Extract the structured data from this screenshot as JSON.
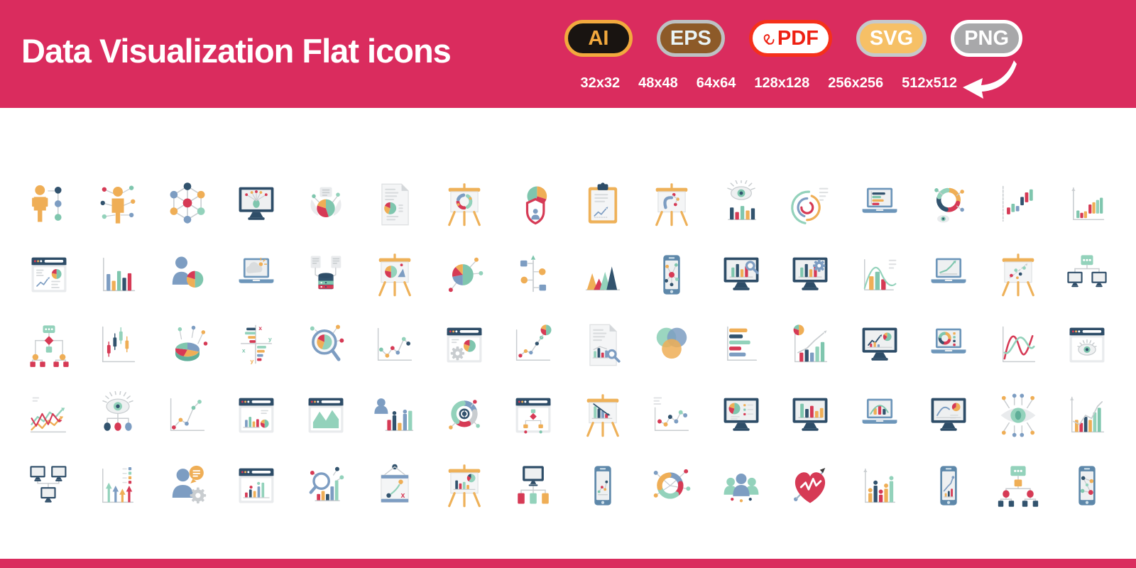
{
  "header": {
    "title": "Data Visualization Flat icons",
    "background_color": "#da2c5e",
    "badges": [
      {
        "label": "AI",
        "fill": "#191411",
        "border": "#f2a93e",
        "text_color": "#f2a93e"
      },
      {
        "label": "EPS",
        "fill": "#8d5a28",
        "border": "#bdc1c3",
        "text_color": "#e9f4f6"
      },
      {
        "label": "PDF",
        "fill": "#ffffff",
        "border": "#f5301b",
        "text_color": "#ee2012",
        "icon": "acrobat-icon"
      },
      {
        "label": "SVG",
        "fill": "#f6c066",
        "border": "#c6c9cb",
        "text_color": "#ffffff"
      },
      {
        "label": "PNG",
        "fill": "#a8a8aa",
        "border": "#ffffff",
        "text_color": "#ffffff"
      }
    ],
    "sizes": [
      "32x32",
      "48x48",
      "64x64",
      "128x128",
      "256x256",
      "512x512"
    ],
    "arrow_icon": "curved-arrow-left"
  },
  "palette": {
    "t": "#7fc6ae",
    "g": "#93d2bb",
    "r": "#d63a55",
    "o": "#efae56",
    "y": "#f3c571",
    "n": "#32536e",
    "b": "#7d9dc2",
    "s": "#688fb4",
    "lg": "#e9ebed",
    "mg": "#c9cdd0",
    "frame": "#2e4d68",
    "lap": "#6d96ba",
    "ph": "#5e88aa",
    "wood": "#eeb159",
    "scr": "#eef0f1",
    "doc": "#f4f5f6",
    "dl": "#d9dcde",
    "w": "#ffffff"
  },
  "icon_grid": {
    "columns": 16,
    "rows": 5,
    "icons": [
      {
        "n": "user-profile-data",
        "k": "person-dots"
      },
      {
        "n": "user-network",
        "k": "person-net"
      },
      {
        "n": "network-nodes",
        "k": "molecule"
      },
      {
        "n": "monitor-data-spread",
        "k": "device",
        "d": "monitor",
        "inner": "radiate"
      },
      {
        "n": "pie-connections",
        "k": "winged-pie"
      },
      {
        "n": "report-document",
        "k": "device",
        "d": "doc",
        "inner": "piedoc"
      },
      {
        "n": "presentation-cycle",
        "k": "device",
        "d": "easel",
        "inner": "cycle"
      },
      {
        "n": "data-privacy-shield",
        "k": "shield-pie"
      },
      {
        "n": "clipboard-report",
        "k": "device",
        "d": "clipboard",
        "inner": "doclines"
      },
      {
        "n": "presentation-strategy",
        "k": "device",
        "d": "easel",
        "inner": "strategy"
      },
      {
        "n": "data-monitoring-eye",
        "k": "eye-bars"
      },
      {
        "n": "radial-arcs-chart",
        "k": "arcs"
      },
      {
        "n": "laptop-report",
        "k": "device",
        "d": "laptop",
        "inner": "hbars"
      },
      {
        "n": "donut-analysis-eye",
        "k": "donut-eye"
      },
      {
        "n": "waterfall-chart",
        "k": "waterfall"
      },
      {
        "n": "rising-bars-axis",
        "k": "risebars"
      },
      {
        "n": "dashboard-window",
        "k": "device",
        "d": "browser",
        "inner": "dash"
      },
      {
        "n": "bar-chart",
        "k": "barchart"
      },
      {
        "n": "user-statistics",
        "k": "person-pie"
      },
      {
        "n": "laptop-cloud-data",
        "k": "device",
        "d": "laptop",
        "inner": "cloud"
      },
      {
        "n": "database-documents",
        "k": "db-docs"
      },
      {
        "n": "presentation-pie",
        "k": "device",
        "d": "easel",
        "inner": "pietri"
      },
      {
        "n": "pie-scatter",
        "k": "pie-scatter"
      },
      {
        "n": "process-timeline",
        "k": "timeline"
      },
      {
        "n": "triangle-area-chart",
        "k": "triangles"
      },
      {
        "n": "mobile-network",
        "k": "device",
        "d": "phone",
        "inner": "network"
      },
      {
        "n": "monitor-search-analytics",
        "k": "device",
        "d": "monitor",
        "inner": "bars",
        "overlay": "magnifier"
      },
      {
        "n": "monitor-settings-analytics",
        "k": "device",
        "d": "monitor",
        "inner": "bars",
        "overlay": "gear"
      },
      {
        "n": "distribution-bell-chart",
        "k": "bellbars"
      },
      {
        "n": "laptop-growth-chart",
        "k": "device",
        "d": "laptop",
        "inner": "line"
      },
      {
        "n": "presentation-scatter",
        "k": "device",
        "d": "easel",
        "inner": "scatter"
      },
      {
        "n": "connected-displays",
        "k": "monitors-msg"
      },
      {
        "n": "hierarchy-flowchart",
        "k": "org-flow"
      },
      {
        "n": "candlestick-chart",
        "k": "candles"
      },
      {
        "n": "pie-3d-chart",
        "k": "pie3d"
      },
      {
        "n": "xy-bar-comparison",
        "k": "xybars"
      },
      {
        "n": "search-pie-analytics",
        "k": "mag-pie"
      },
      {
        "n": "dot-line-chart",
        "k": "dotline",
        "v": "mid"
      },
      {
        "n": "web-dashboard-settings",
        "k": "device",
        "d": "browser",
        "inner": "piegear"
      },
      {
        "n": "pie-trend-chart",
        "k": "chart-pie"
      },
      {
        "n": "document-analysis",
        "k": "device",
        "d": "doc",
        "inner": "docbars",
        "overlay": "magnifier"
      },
      {
        "n": "venn-diagram",
        "k": "venn"
      },
      {
        "n": "horizontal-bar-chart",
        "k": "hbarchart"
      },
      {
        "n": "growth-pie-analysis",
        "k": "growth-pie"
      },
      {
        "n": "monitor-dashboard",
        "k": "device",
        "d": "monitor",
        "inner": "linepie"
      },
      {
        "n": "laptop-donut-report",
        "k": "device",
        "d": "laptop",
        "inner": "donutlegend"
      },
      {
        "n": "curve-comparison",
        "k": "curves"
      },
      {
        "n": "web-monitoring-eye",
        "k": "device",
        "d": "browser",
        "inner": "eye"
      },
      {
        "n": "trend-lines-chart",
        "k": "trend-arrows"
      },
      {
        "n": "eye-data-tree",
        "k": "eye-tree"
      },
      {
        "n": "rising-dot-chart",
        "k": "dotline",
        "v": "rise"
      },
      {
        "n": "web-analytics-report",
        "k": "device",
        "d": "browser",
        "inner": "barspie"
      },
      {
        "n": "web-area-chart",
        "k": "device",
        "d": "browser",
        "inner": "area"
      },
      {
        "n": "presenter-statistics",
        "k": "person-stats"
      },
      {
        "n": "data-sync-donut",
        "k": "sync-donut"
      },
      {
        "n": "web-flowchart",
        "k": "device",
        "d": "browser",
        "inner": "flow"
      },
      {
        "n": "declining-chart-presentation",
        "k": "device",
        "d": "easel",
        "inner": "decline"
      },
      {
        "n": "scatter-trend-chart",
        "k": "scatter-trend"
      },
      {
        "n": "monitor-pie-report",
        "k": "device",
        "d": "monitor",
        "inner": "pielist"
      },
      {
        "n": "monitor-bar-chart",
        "k": "device",
        "d": "monitor",
        "inner": "bars2"
      },
      {
        "n": "laptop-distribution",
        "k": "device",
        "d": "laptop",
        "inner": "bell"
      },
      {
        "n": "monitor-trend-pie",
        "k": "device",
        "d": "monitor",
        "inner": "linepie2"
      },
      {
        "n": "data-vision-eye",
        "k": "circuit-eye"
      },
      {
        "n": "bars-trend-growth",
        "k": "barsline"
      },
      {
        "n": "monitor-network",
        "k": "monitor-trio"
      },
      {
        "n": "arrow-growth-chart",
        "k": "arrow-bars"
      },
      {
        "n": "consultant-user",
        "k": "person-gear"
      },
      {
        "n": "web-growth-stats",
        "k": "device",
        "d": "browser",
        "inner": "growbars"
      },
      {
        "n": "search-statistics",
        "k": "mag-bars"
      },
      {
        "n": "strategy-board",
        "k": "strategy-board"
      },
      {
        "n": "presentation-bar-pie",
        "k": "device",
        "d": "easel",
        "inner": "barspie2"
      },
      {
        "n": "monitor-category-tree",
        "k": "monitor-tree"
      },
      {
        "n": "mobile-chart",
        "k": "device",
        "d": "phone",
        "inner": "scatterline"
      },
      {
        "n": "donut-node-chart",
        "k": "donut-net"
      },
      {
        "n": "team-analytics",
        "k": "team"
      },
      {
        "n": "health-data-heart",
        "k": "heart-pulse"
      },
      {
        "n": "dotted-bar-chart",
        "k": "dotbars"
      },
      {
        "n": "mobile-growth-chart",
        "k": "device",
        "d": "phone",
        "inner": "growline"
      },
      {
        "n": "organization-chart",
        "k": "org-chat"
      },
      {
        "n": "mobile-network-diagram",
        "k": "device",
        "d": "phone",
        "inner": "network2"
      }
    ]
  }
}
